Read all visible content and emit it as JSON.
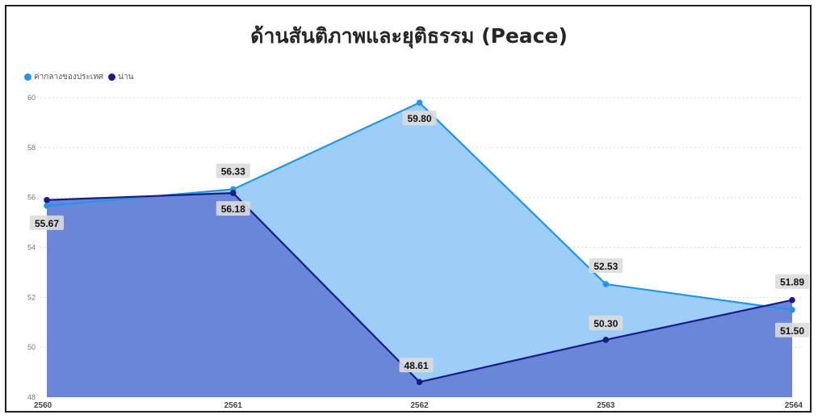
{
  "chart_data": {
    "type": "area",
    "title": "ด้านสันติภาพและยุติธรรม (Peace)",
    "xlabel": "",
    "ylabel": "",
    "categories": [
      "2560",
      "2561",
      "2562",
      "2563",
      "2564"
    ],
    "ylim": [
      48,
      60
    ],
    "yticks": [
      "48",
      "50",
      "52",
      "54",
      "56",
      "58",
      "60"
    ],
    "grid": true,
    "legend_position": "top-left",
    "series": [
      {
        "name": "ค่ากลางของประเทศ",
        "values": [
          55.67,
          56.33,
          59.8,
          52.53,
          51.5
        ],
        "labels": [
          "55.67",
          "56.33",
          "59.80",
          "52.53",
          "51.50"
        ],
        "color": "#2196e8",
        "fill": "#9dcef7"
      },
      {
        "name": "น่าน",
        "values": [
          55.9,
          56.18,
          48.61,
          50.3,
          51.89
        ],
        "labels": [
          "",
          "56.18",
          "48.61",
          "50.30",
          "51.89"
        ],
        "color": "#1a1a8c",
        "fill": "#6a86d8"
      }
    ]
  }
}
